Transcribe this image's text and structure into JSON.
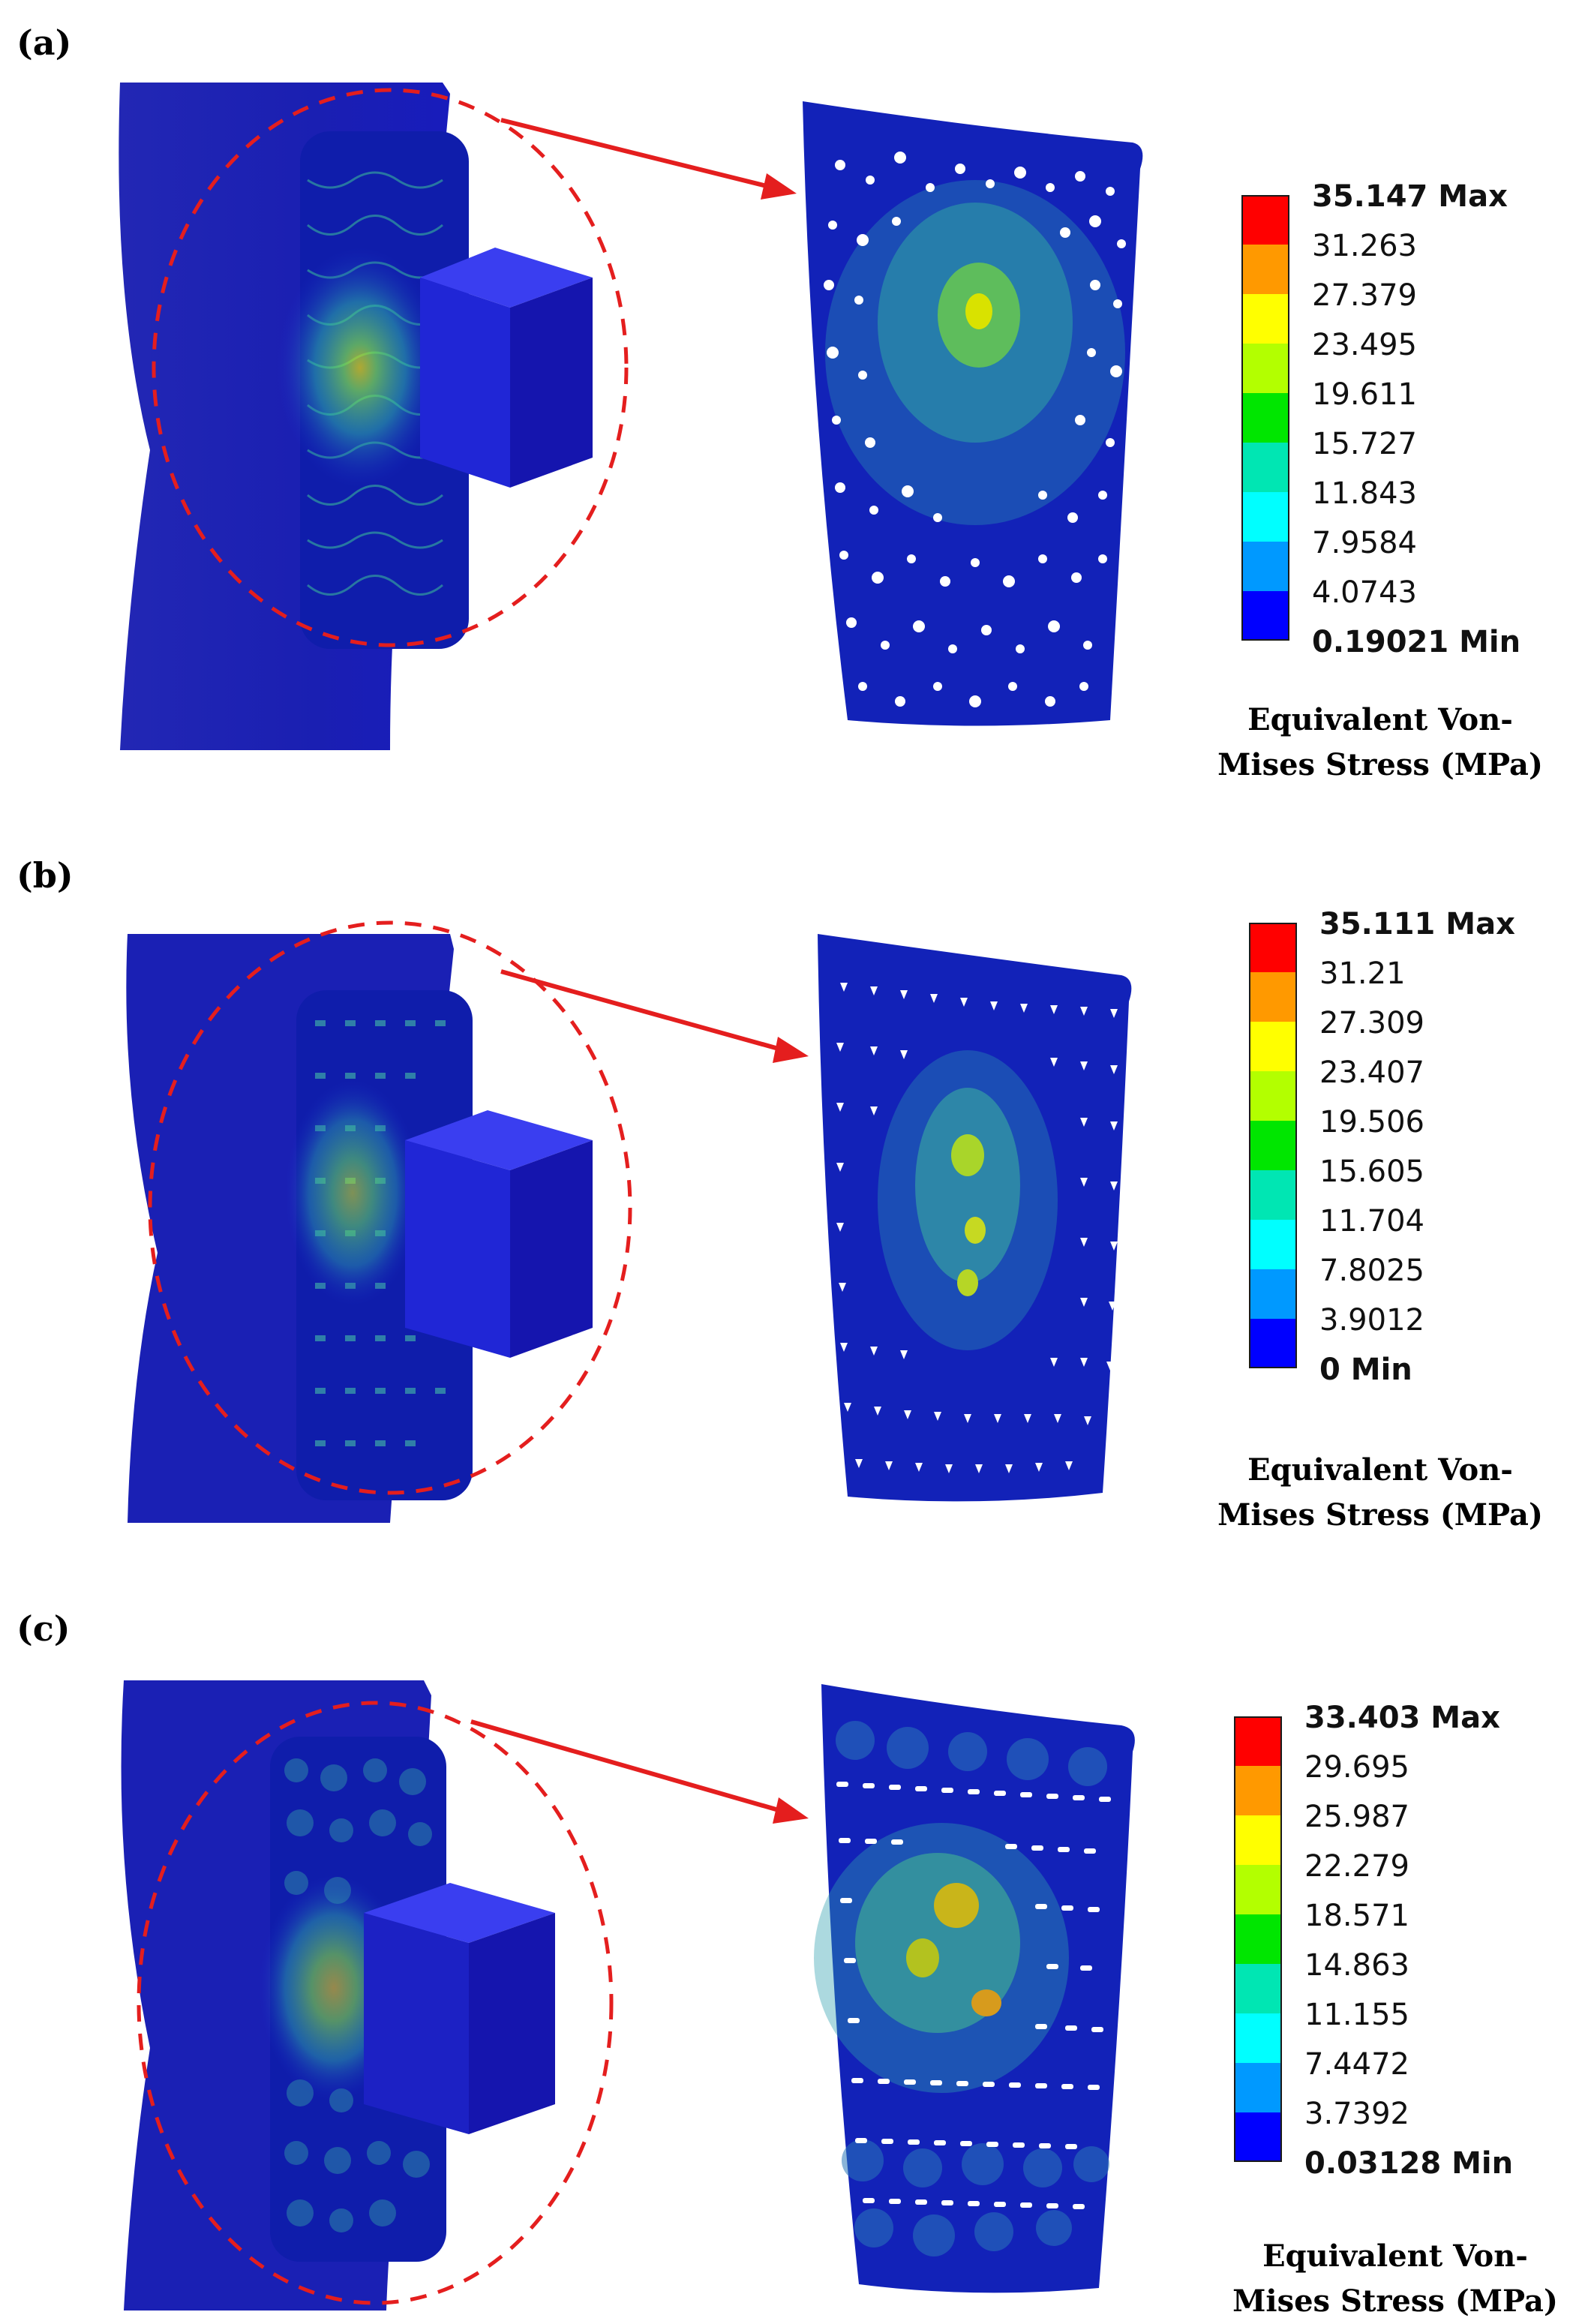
{
  "panels": [
    {
      "label": "(a)",
      "legend": {
        "max": "35.147 Max",
        "ticks": [
          "31.263",
          "27.379",
          "23.495",
          "19.611",
          "15.727",
          "11.843",
          "7.9584",
          "4.0743"
        ],
        "min": "0.19021 Min"
      },
      "caption_line1": "Equivalent Von-",
      "caption_line2": "Mises Stress (MPa)",
      "lattice": "voronoi"
    },
    {
      "label": "(b)",
      "legend": {
        "max": "35.111 Max",
        "ticks": [
          "31.21",
          "27.309",
          "23.407",
          "19.506",
          "15.605",
          "11.704",
          "7.8025",
          "3.9012"
        ],
        "min": "0 Min"
      },
      "caption_line1": "Equivalent Von-",
      "caption_line2": "Mises Stress (MPa)",
      "lattice": "grid"
    },
    {
      "label": "(c)",
      "legend": {
        "max": "33.403 Max",
        "ticks": [
          "29.695",
          "25.987",
          "22.279",
          "18.571",
          "14.863",
          "11.155",
          "7.4472",
          "3.7392"
        ],
        "min": "0.03128 Min"
      },
      "caption_line1": "Equivalent Von-",
      "caption_line2": "Mises Stress (MPa)",
      "lattice": "rows"
    }
  ],
  "colors": {
    "scale": [
      "#ff0000",
      "#ff9900",
      "#ffff00",
      "#b3ff00",
      "#00e600",
      "#00e6b3",
      "#00ffff",
      "#0099ff",
      "#0000ff"
    ],
    "bone": "#1c20b8",
    "block": "#1c1cc6",
    "callout": "#e41e1e"
  }
}
